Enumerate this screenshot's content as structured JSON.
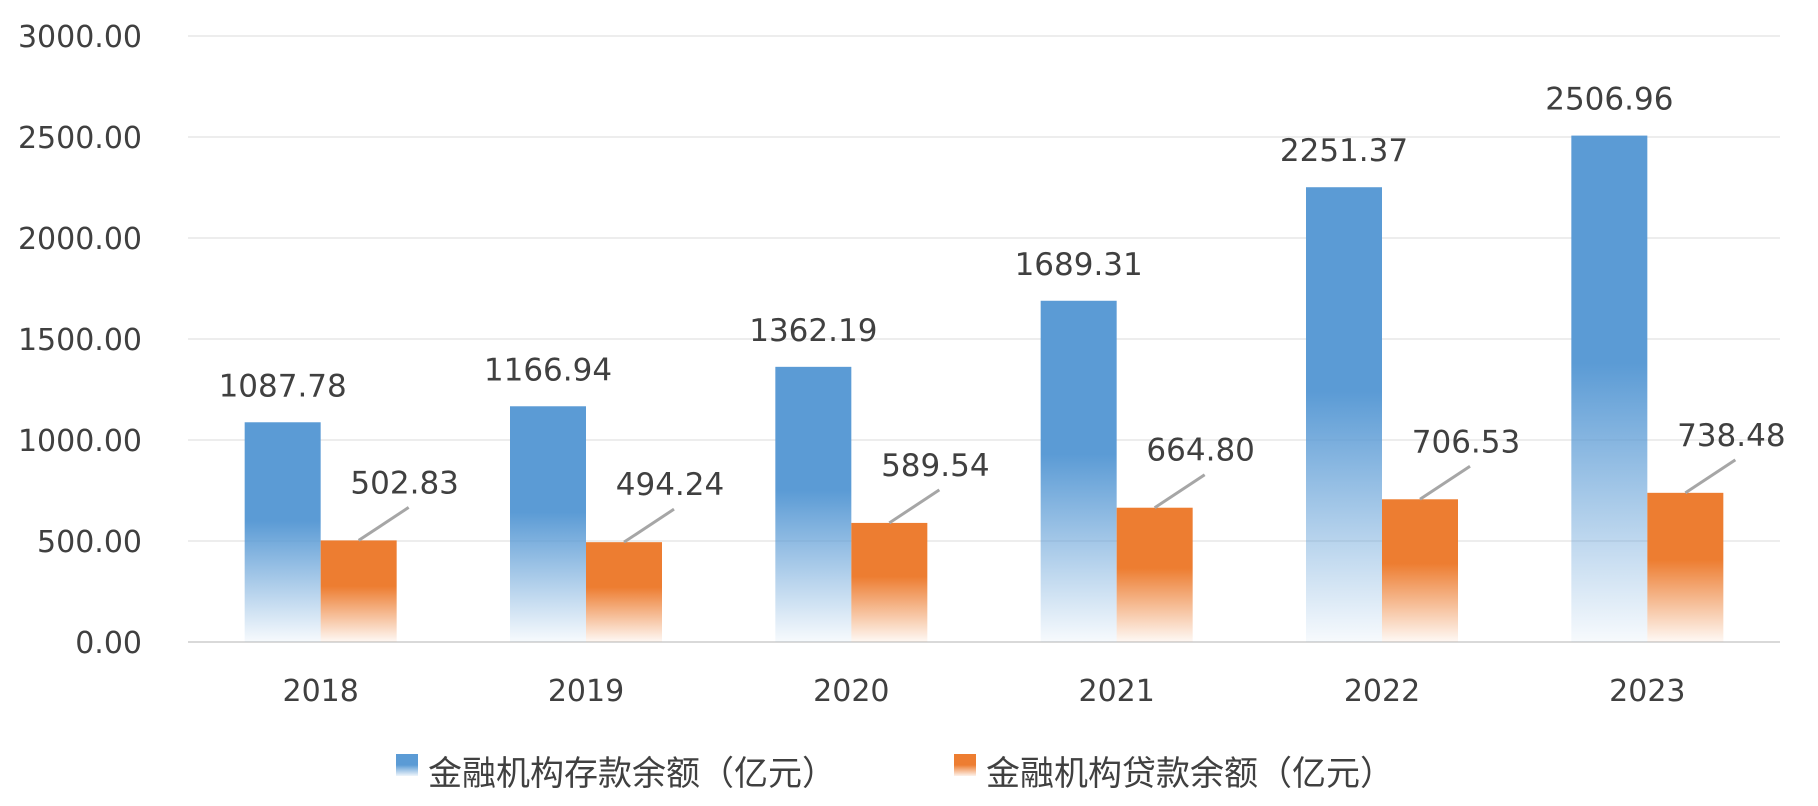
{
  "chart_data": {
    "type": "bar",
    "categories": [
      "2018",
      "2019",
      "2020",
      "2021",
      "2022",
      "2023"
    ],
    "series": [
      {
        "name": "金融机构存款余额（亿元）",
        "values": [
          1087.78,
          1166.94,
          1362.19,
          1689.31,
          2251.37,
          2506.96
        ],
        "labels": [
          "1087.78",
          "1166.94",
          "1362.19",
          "1689.31",
          "2251.37",
          "2506.96"
        ],
        "color": "#5B9BD5"
      },
      {
        "name": "金融机构贷款余额（亿元）",
        "values": [
          502.83,
          494.24,
          589.54,
          664.8,
          706.53,
          738.48
        ],
        "labels": [
          "502.83",
          "494.24",
          "589.54",
          "664.80",
          "706.53",
          "738.48"
        ],
        "color": "#ED7D31"
      }
    ],
    "y_ticks": [
      "0.00",
      "500.00",
      "1000.00",
      "1500.00",
      "2000.00",
      "2500.00",
      "3000.00"
    ],
    "ylim": [
      0,
      3000
    ],
    "grid": true,
    "legend_position": "bottom",
    "leader_line_color": "#A6A6A6"
  }
}
